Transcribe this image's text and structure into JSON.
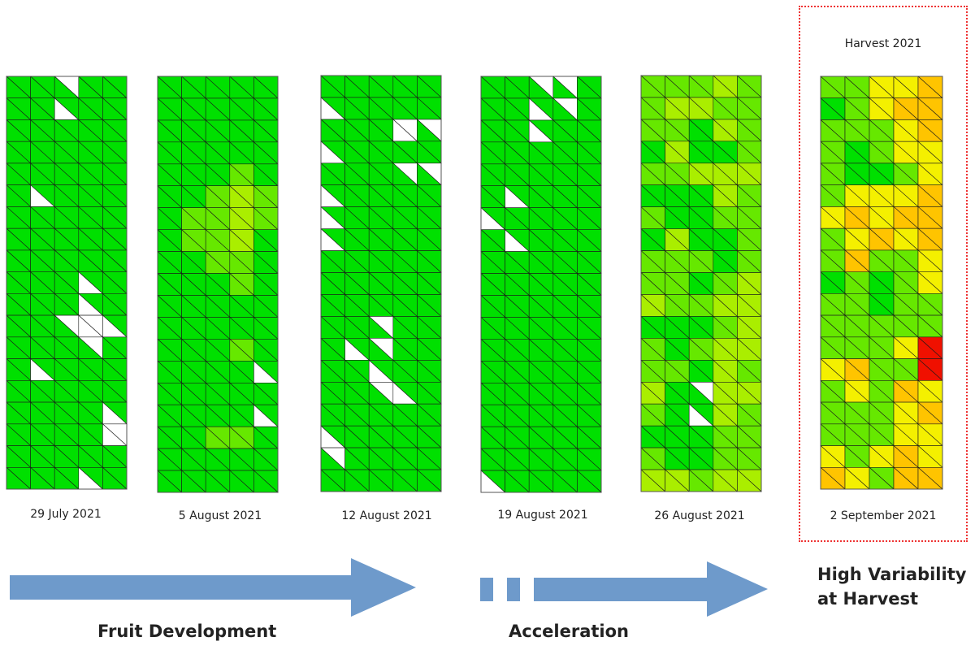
{
  "colors": {
    "white": "#ffffff",
    "green": "#00e000",
    "lightgreen": "#66e800",
    "yellowgreen": "#aaee00",
    "yellow": "#f4f000",
    "orange": "#ffc400",
    "darkorange": "#ff9800",
    "red": "#f01000",
    "arrow": "#6e9acb",
    "grid_line": "#1a1a1a",
    "highlight_border": "#ee3333"
  },
  "panels": [
    {
      "date": "29 July 2021",
      "base": "green",
      "cells": [
        [
          "g",
          "g",
          "wr",
          "g",
          "g"
        ],
        [
          "g",
          "g",
          "wl",
          "g",
          "g"
        ],
        [
          "g",
          "g",
          "g",
          "g",
          "g"
        ],
        [
          "g",
          "g",
          "g",
          "g",
          "g"
        ],
        [
          "g",
          "g",
          "g",
          "g",
          "g"
        ],
        [
          "g",
          "wl",
          "g",
          "g",
          "g"
        ],
        [
          "g",
          "g",
          "g",
          "g",
          "g"
        ],
        [
          "g",
          "g",
          "g",
          "g",
          "g"
        ],
        [
          "g",
          "g",
          "g",
          "g",
          "g"
        ],
        [
          "g",
          "g",
          "g",
          "wl",
          "g"
        ],
        [
          "g",
          "g",
          "g",
          "wl",
          "g"
        ],
        [
          "g",
          "g",
          "wr",
          "wf",
          "wl"
        ],
        [
          "g",
          "g",
          "g",
          "wr",
          "g"
        ],
        [
          "g",
          "wl",
          "g",
          "g",
          "g"
        ],
        [
          "g",
          "g",
          "g",
          "g",
          "g"
        ],
        [
          "g",
          "g",
          "g",
          "g",
          "wl"
        ],
        [
          "g",
          "g",
          "g",
          "g",
          "wf"
        ],
        [
          "g",
          "g",
          "g",
          "g",
          "g"
        ],
        [
          "g",
          "g",
          "g",
          "wl",
          "g"
        ]
      ]
    },
    {
      "date": "5 August 2021",
      "base": "green",
      "cells": [
        [
          "g",
          "g",
          "g",
          "g",
          "g"
        ],
        [
          "g",
          "g",
          "g",
          "g",
          "g"
        ],
        [
          "g",
          "g",
          "g",
          "g",
          "g"
        ],
        [
          "g",
          "g",
          "g",
          "g",
          "g"
        ],
        [
          "g",
          "g",
          "g",
          "l",
          "g"
        ],
        [
          "g",
          "g",
          "l",
          "y",
          "l"
        ],
        [
          "g",
          "l",
          "l",
          "y",
          "l"
        ],
        [
          "g",
          "l",
          "l",
          "y",
          "g"
        ],
        [
          "g",
          "g",
          "l",
          "l",
          "g"
        ],
        [
          "g",
          "g",
          "g",
          "l",
          "g"
        ],
        [
          "g",
          "g",
          "g",
          "g",
          "g"
        ],
        [
          "g",
          "g",
          "g",
          "g",
          "g"
        ],
        [
          "g",
          "g",
          "g",
          "l",
          "g"
        ],
        [
          "g",
          "g",
          "g",
          "g",
          "wl"
        ],
        [
          "g",
          "g",
          "g",
          "g",
          "g"
        ],
        [
          "g",
          "g",
          "g",
          "g",
          "wl"
        ],
        [
          "g",
          "g",
          "l",
          "l",
          "g"
        ],
        [
          "g",
          "g",
          "g",
          "g",
          "g"
        ],
        [
          "g",
          "g",
          "g",
          "g",
          "g"
        ]
      ]
    },
    {
      "date": "12 August 2021",
      "base": "green",
      "cells": [
        [
          "g",
          "g",
          "g",
          "g",
          "g"
        ],
        [
          "wl",
          "g",
          "g",
          "g",
          "g"
        ],
        [
          "g",
          "g",
          "g",
          "wf",
          "wr"
        ],
        [
          "wl",
          "g",
          "g",
          "g",
          "g"
        ],
        [
          "g",
          "g",
          "g",
          "wr",
          "wr"
        ],
        [
          "wl",
          "g",
          "g",
          "g",
          "g"
        ],
        [
          "wl",
          "g",
          "g",
          "g",
          "g"
        ],
        [
          "wl",
          "g",
          "g",
          "g",
          "g"
        ],
        [
          "g",
          "g",
          "g",
          "g",
          "g"
        ],
        [
          "g",
          "g",
          "g",
          "g",
          "g"
        ],
        [
          "g",
          "g",
          "g",
          "g",
          "g"
        ],
        [
          "g",
          "g",
          "wr",
          "g",
          "g"
        ],
        [
          "g",
          "wl",
          "wr",
          "g",
          "g"
        ],
        [
          "g",
          "g",
          "wl",
          "g",
          "g"
        ],
        [
          "g",
          "g",
          "wr",
          "wl",
          "g"
        ],
        [
          "g",
          "g",
          "g",
          "g",
          "g"
        ],
        [
          "wl",
          "g",
          "g",
          "g",
          "g"
        ],
        [
          "wr",
          "g",
          "g",
          "g",
          "g"
        ],
        [
          "g",
          "g",
          "g",
          "g",
          "g"
        ]
      ]
    },
    {
      "date": "19 August 2021",
      "base": "green",
      "cells": [
        [
          "g",
          "g",
          "wr",
          "wr",
          "g"
        ],
        [
          "g",
          "g",
          "wl",
          "wr",
          "g"
        ],
        [
          "g",
          "g",
          "wl",
          "g",
          "g"
        ],
        [
          "g",
          "g",
          "g",
          "g",
          "g"
        ],
        [
          "g",
          "g",
          "g",
          "g",
          "g"
        ],
        [
          "g",
          "wl",
          "g",
          "g",
          "g"
        ],
        [
          "wl",
          "g",
          "g",
          "g",
          "g"
        ],
        [
          "g",
          "wl",
          "g",
          "g",
          "g"
        ],
        [
          "g",
          "g",
          "g",
          "g",
          "g"
        ],
        [
          "g",
          "g",
          "g",
          "g",
          "g"
        ],
        [
          "g",
          "g",
          "g",
          "g",
          "g"
        ],
        [
          "g",
          "g",
          "g",
          "g",
          "g"
        ],
        [
          "g",
          "g",
          "g",
          "g",
          "g"
        ],
        [
          "g",
          "g",
          "g",
          "g",
          "g"
        ],
        [
          "g",
          "g",
          "g",
          "g",
          "g"
        ],
        [
          "g",
          "g",
          "g",
          "g",
          "g"
        ],
        [
          "g",
          "g",
          "g",
          "g",
          "g"
        ],
        [
          "g",
          "g",
          "g",
          "g",
          "g"
        ],
        [
          "wl",
          "g",
          "g",
          "g",
          "g"
        ]
      ]
    },
    {
      "date": "26 August 2021",
      "base": "green",
      "cells": [
        [
          "l",
          "l",
          "l",
          "y",
          "l"
        ],
        [
          "l",
          "y",
          "y",
          "l",
          "l"
        ],
        [
          "l",
          "l",
          "g",
          "y",
          "l"
        ],
        [
          "g",
          "y",
          "g",
          "g",
          "l"
        ],
        [
          "l",
          "l",
          "y",
          "y",
          "y"
        ],
        [
          "g",
          "g",
          "g",
          "y",
          "l"
        ],
        [
          "l",
          "g",
          "g",
          "l",
          "l"
        ],
        [
          "g",
          "y",
          "g",
          "g",
          "l"
        ],
        [
          "l",
          "l",
          "l",
          "g",
          "l"
        ],
        [
          "l",
          "l",
          "g",
          "l",
          "y"
        ],
        [
          "y",
          "l",
          "l",
          "y",
          "y"
        ],
        [
          "g",
          "g",
          "g",
          "l",
          "y"
        ],
        [
          "l",
          "g",
          "l",
          "y",
          "y"
        ],
        [
          "l",
          "l",
          "g",
          "y",
          "l"
        ],
        [
          "y",
          "g",
          "wr",
          "y",
          "y"
        ],
        [
          "l",
          "g",
          "wl",
          "y",
          "l"
        ],
        [
          "g",
          "g",
          "g",
          "l",
          "l"
        ],
        [
          "l",
          "g",
          "g",
          "l",
          "l"
        ],
        [
          "y",
          "y",
          "l",
          "y",
          "y"
        ]
      ]
    },
    {
      "date": "2 September 2021",
      "base": "green",
      "cells": [
        [
          "l",
          "l",
          "y",
          "y",
          "o"
        ],
        [
          "g",
          "l",
          "y",
          "o",
          "o"
        ],
        [
          "l",
          "l",
          "l",
          "y",
          "o"
        ],
        [
          "l",
          "g",
          "l",
          "y",
          "y"
        ],
        [
          "l",
          "g",
          "g",
          "l",
          "y"
        ],
        [
          "l",
          "y",
          "y",
          "y",
          "o"
        ],
        [
          "y",
          "o",
          "y",
          "o",
          "o"
        ],
        [
          "l",
          "y",
          "o",
          "y",
          "o"
        ],
        [
          "l",
          "o",
          "l",
          "l",
          "y"
        ],
        [
          "g",
          "l",
          "g",
          "l",
          "y"
        ],
        [
          "l",
          "l",
          "g",
          "l",
          "l"
        ],
        [
          "l",
          "l",
          "l",
          "l",
          "l"
        ],
        [
          "l",
          "l",
          "l",
          "y",
          "r"
        ],
        [
          "y",
          "o",
          "l",
          "l",
          "r"
        ],
        [
          "l",
          "y",
          "l",
          "o",
          "y"
        ],
        [
          "l",
          "l",
          "l",
          "y",
          "o"
        ],
        [
          "l",
          "l",
          "l",
          "y",
          "y"
        ],
        [
          "y",
          "l",
          "y",
          "o",
          "y"
        ],
        [
          "o",
          "y",
          "l",
          "o",
          "o"
        ]
      ]
    }
  ],
  "harvest_title": "Harvest 2021",
  "phases": {
    "fruit_development": "Fruit Development",
    "acceleration": "Acceleration"
  },
  "high_variability": {
    "line1": "High Variability",
    "line2": "at Harvest"
  }
}
